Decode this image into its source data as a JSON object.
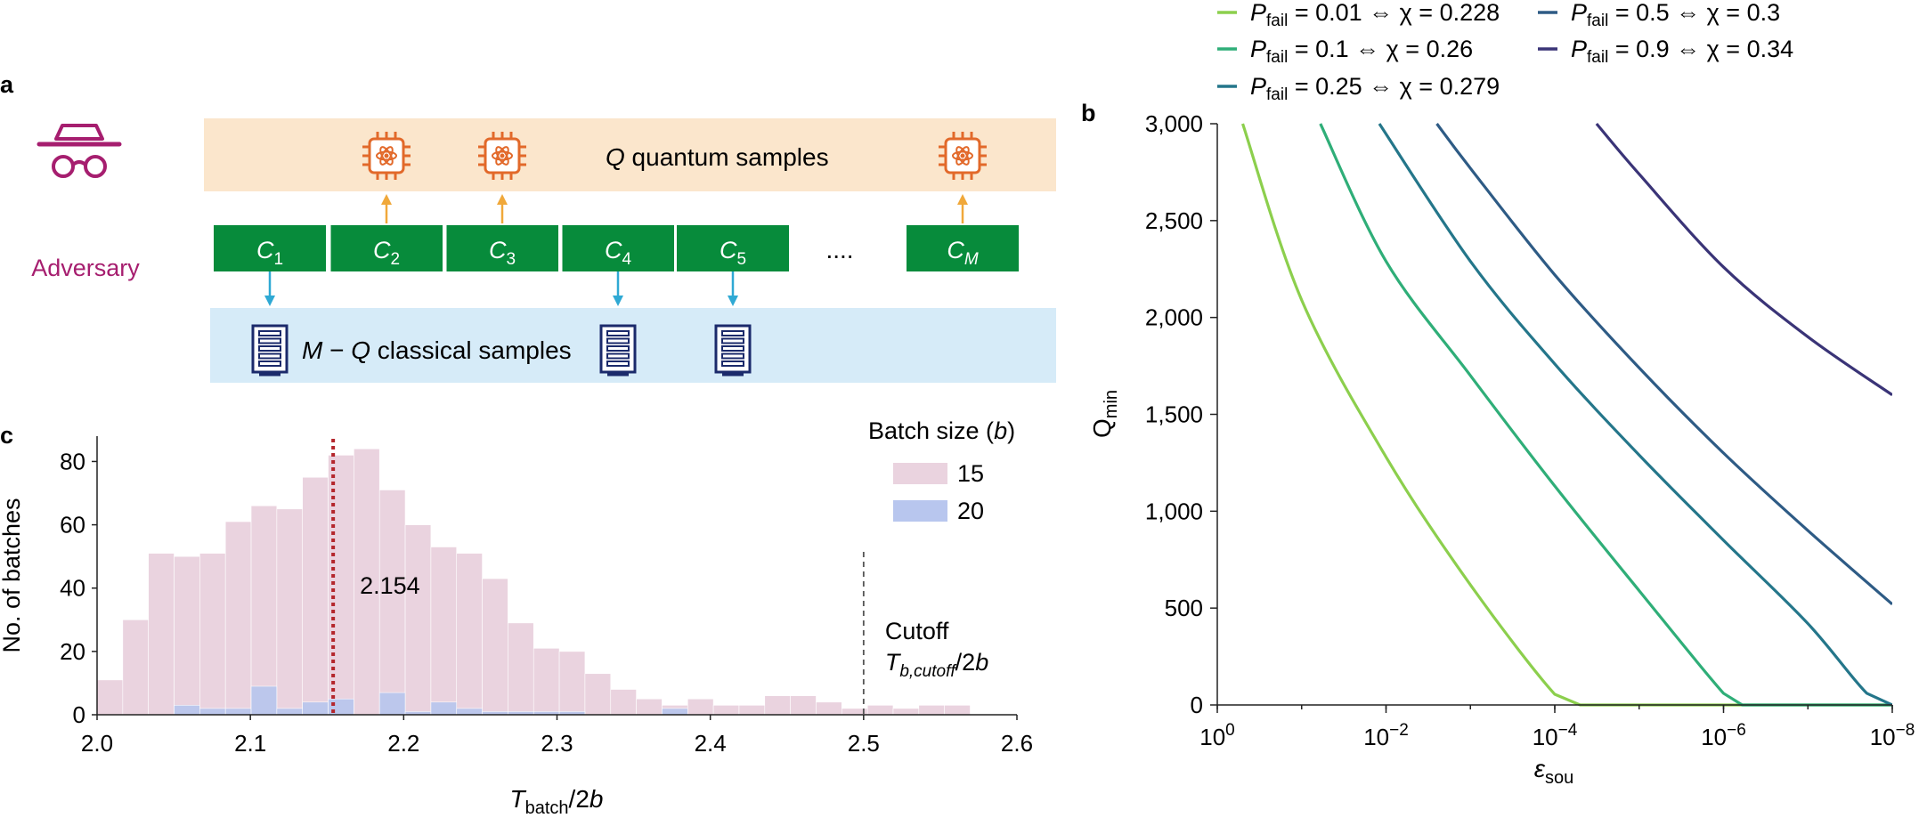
{
  "panel_labels": {
    "a": "a",
    "b": "b",
    "c": "c"
  },
  "colors": {
    "quantum_band": "#fbe6cc",
    "classical_band": "#d6ebf8",
    "circuit_box": "#078b3b",
    "adversary": "#a61e6f",
    "chip_icon": "#e2692a",
    "quantum_arrow": "#f0a83a",
    "classical_arrow": "#2fa9d4",
    "server_icon": "#1b2a6b",
    "hist_15": "#ead3df",
    "hist_20": "#b8c6ee",
    "mean_line": "#b4262c",
    "cutoff_line": "#555555"
  },
  "panel_a": {
    "adversary_label": "Adversary",
    "adversary_icon": "spy-icon",
    "quantum_band_label": {
      "var": "Q",
      "rest": " quantum samples"
    },
    "classical_band_label": {
      "var1": "M",
      "op": " − ",
      "var2": "Q",
      "rest": " classical samples"
    },
    "circuits": [
      {
        "base": "C",
        "sub": "1",
        "source": "classical"
      },
      {
        "base": "C",
        "sub": "2",
        "source": "quantum"
      },
      {
        "base": "C",
        "sub": "3",
        "source": "quantum"
      },
      {
        "base": "C",
        "sub": "4",
        "source": "classical"
      },
      {
        "base": "C",
        "sub": "5",
        "source": "classical"
      },
      {
        "base": "C",
        "sub": "M",
        "source": "quantum"
      }
    ],
    "ellipsis": "....",
    "quantum_icon": "quantum-chip-icon",
    "classical_icon": "server-rack-icon"
  },
  "chart_data": [
    {
      "panel": "b",
      "type": "line",
      "title": "",
      "xlabel": {
        "base": "ε",
        "sub": "sou"
      },
      "ylabel": {
        "base": "Q",
        "sub": "min"
      },
      "x_scale": "log",
      "x_direction": "decreasing",
      "xlim": [
        1,
        1e-08
      ],
      "ylim": [
        0,
        3000
      ],
      "x_ticks": [
        {
          "value": 1,
          "base": "10",
          "exp": "0"
        },
        {
          "value": 0.01,
          "base": "10",
          "exp": "−2"
        },
        {
          "value": 0.0001,
          "base": "10",
          "exp": "−4"
        },
        {
          "value": 1e-06,
          "base": "10",
          "exp": "−6"
        },
        {
          "value": 1e-08,
          "base": "10",
          "exp": "−8"
        }
      ],
      "y_ticks": [
        {
          "value": 0,
          "label": "0"
        },
        {
          "value": 500,
          "label": "500"
        },
        {
          "value": 1000,
          "label": "1,000"
        },
        {
          "value": 1500,
          "label": "1,500"
        },
        {
          "value": 2000,
          "label": "2,000"
        },
        {
          "value": 2500,
          "label": "2,500"
        },
        {
          "value": 3000,
          "label": "3,000"
        }
      ],
      "legend_position": "top",
      "series": [
        {
          "name": "P_fail = 0.01 ⇔ χ = 0.228",
          "pfail": "0.01",
          "chi": "0.228",
          "color": "#8ccf4d",
          "x": [
            0.5,
            0.1,
            0.01,
            0.001,
            0.0001,
            5e-05,
            3e-05,
            1e-06,
            1e-08
          ],
          "y": [
            3000,
            2090,
            1280,
            620,
            55,
            0,
            0,
            0,
            0
          ]
        },
        {
          "name": "P_fail = 0.1 ⇔ χ = 0.26",
          "pfail": "0.1",
          "chi": "0.26",
          "color": "#2fae78",
          "x": [
            0.06,
            0.01,
            0.001,
            0.0001,
            1e-05,
            1e-06,
            6e-07,
            4e-07,
            1e-08
          ],
          "y": [
            3000,
            2290,
            1700,
            1130,
            590,
            60,
            0,
            0,
            0
          ]
        },
        {
          "name": "P_fail = 0.25 ⇔ χ = 0.279",
          "pfail": "0.25",
          "chi": "0.279",
          "color": "#24768a",
          "x": [
            0.012,
            0.001,
            0.0001,
            1e-05,
            1e-06,
            1e-07,
            2e-08,
            1e-08
          ],
          "y": [
            3000,
            2290,
            1760,
            1290,
            850,
            420,
            60,
            0
          ]
        },
        {
          "name": "P_fail = 0.5 ⇔ χ = 0.3",
          "pfail": "0.5",
          "chi": "0.3",
          "color": "#2e5b85",
          "x": [
            0.0025,
            0.001,
            0.0001,
            1e-05,
            1e-06,
            1e-07,
            1e-08
          ],
          "y": [
            3000,
            2770,
            2220,
            1740,
            1300,
            900,
            520
          ]
        },
        {
          "name": "P_fail = 0.9 ⇔ χ = 0.34",
          "pfail": "0.9",
          "chi": "0.34",
          "color": "#3a3477",
          "x": [
            3.2e-05,
            1e-05,
            1e-06,
            1e-07,
            1e-08
          ],
          "y": [
            3000,
            2740,
            2260,
            1900,
            1600
          ]
        }
      ]
    },
    {
      "panel": "c",
      "type": "bar",
      "subtype": "histogram",
      "title": "",
      "xlabel": {
        "base": "T",
        "sub": "batch",
        "tail": "/2",
        "tail_var": "b"
      },
      "ylabel": "No. of batches",
      "xlim": [
        2.0,
        2.6
      ],
      "ylim": [
        0,
        88
      ],
      "x_ticks": [
        {
          "value": 2.0,
          "label": "2.0"
        },
        {
          "value": 2.1,
          "label": "2.1"
        },
        {
          "value": 2.2,
          "label": "2.2"
        },
        {
          "value": 2.3,
          "label": "2.3"
        },
        {
          "value": 2.4,
          "label": "2.4"
        },
        {
          "value": 2.5,
          "label": "2.5"
        },
        {
          "value": 2.6,
          "label": "2.6"
        }
      ],
      "y_ticks": [
        {
          "value": 0,
          "label": "0"
        },
        {
          "value": 20,
          "label": "20"
        },
        {
          "value": 40,
          "label": "40"
        },
        {
          "value": 60,
          "label": "60"
        },
        {
          "value": 80,
          "label": "80"
        }
      ],
      "legend_title": {
        "text": "Batch size (",
        "var": "b",
        "close": ")"
      },
      "legend_position": "top-right",
      "bin_start": 2.0,
      "bin_width": 0.01675,
      "series": [
        {
          "name": "15",
          "color": "#ead3df",
          "values": [
            11,
            30,
            51,
            50,
            51,
            61,
            66,
            65,
            75,
            82,
            84,
            71,
            60,
            53,
            51,
            43,
            29,
            21,
            20,
            13,
            8,
            5,
            3,
            5,
            3,
            3,
            6,
            6,
            4,
            2,
            3,
            2,
            3,
            3,
            0
          ]
        },
        {
          "name": "20",
          "color": "#b8c6ee",
          "values": [
            0,
            0,
            0,
            3,
            2,
            2,
            9,
            2,
            4,
            5,
            0,
            7,
            1,
            4,
            2,
            1,
            1,
            1,
            1,
            0,
            0,
            0,
            2,
            0,
            0,
            0,
            0,
            0,
            0,
            0,
            0,
            0,
            0,
            0,
            0
          ]
        }
      ],
      "mean_line": {
        "x": 2.154,
        "label": "2.154"
      },
      "cutoff_line": {
        "x": 2.5,
        "label": "Cutoff",
        "sub_label": {
          "base": "T",
          "sub": "b,cutoff",
          "tail": "/2",
          "tail_var": "b"
        }
      }
    }
  ]
}
